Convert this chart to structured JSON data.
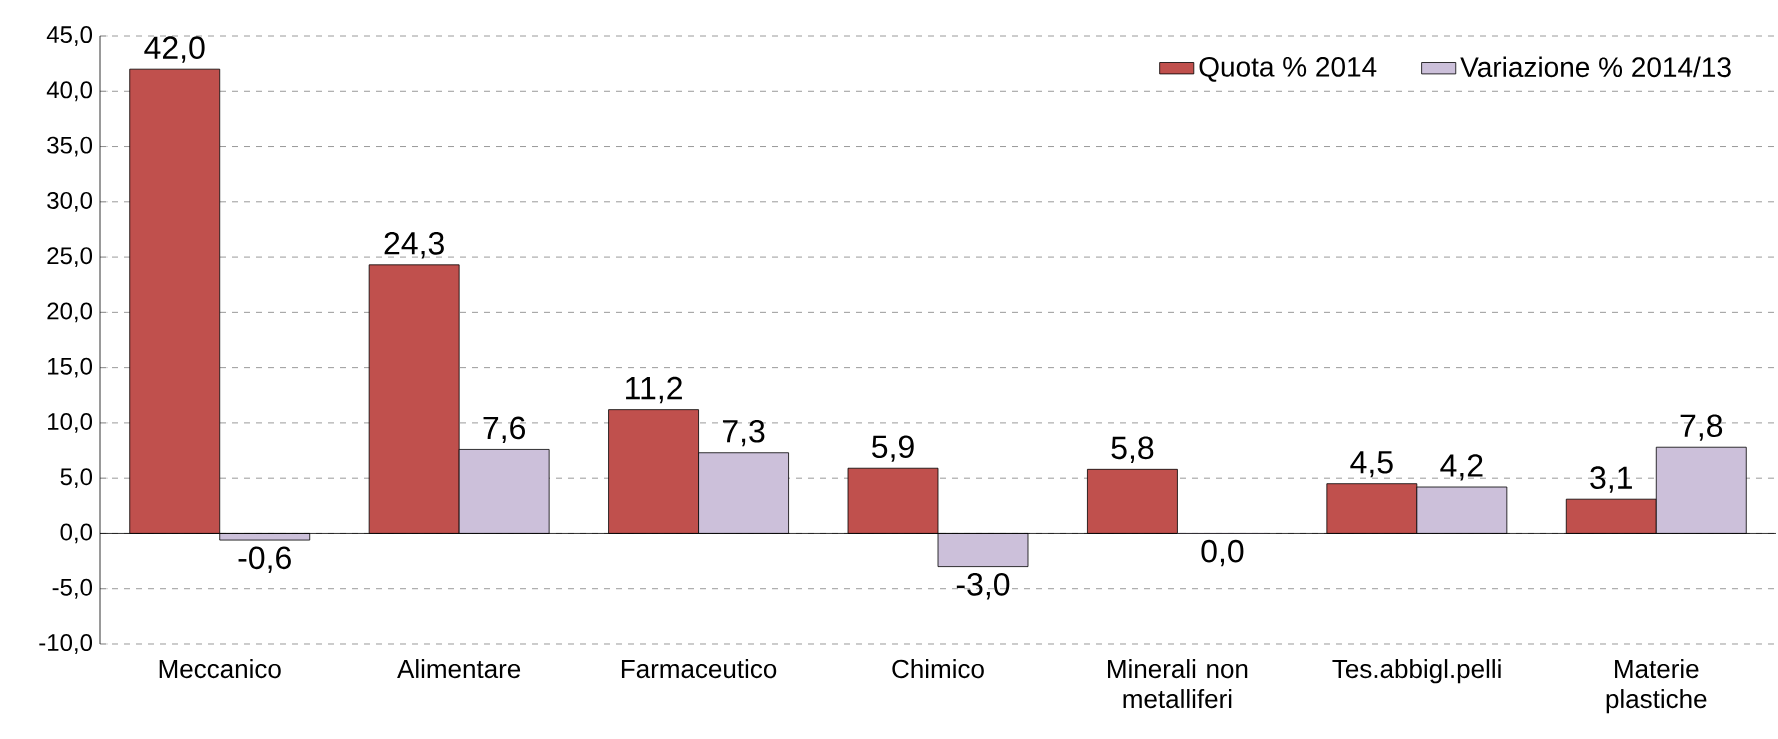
{
  "chart_data": {
    "type": "bar",
    "categories": [
      "Meccanico",
      "Alimentare",
      "Farmaceutico",
      "Chimico",
      "Minerali non metalliferi",
      "Tes.abbigl.pelli",
      "Materie plastiche"
    ],
    "series": [
      {
        "name": "Quota % 2014",
        "color": "#c0504d",
        "values": [
          42.0,
          24.3,
          11.2,
          5.9,
          5.8,
          4.5,
          3.1
        ],
        "value_labels": [
          "42,0",
          "24,3",
          "11,2",
          "5,9",
          "5,8",
          "4,5",
          "3,1"
        ]
      },
      {
        "name": "Variazione % 2014/13",
        "color": "#ccc0da",
        "values": [
          -0.6,
          7.6,
          7.3,
          -3.0,
          0.0,
          4.2,
          7.8
        ],
        "value_labels": [
          "-0,6",
          "7,6",
          "7,3",
          "-3,0",
          "0,0",
          "4,2",
          "7,8"
        ]
      }
    ],
    "ylim": [
      -10,
      45
    ],
    "yticks": [
      {
        "value": -10,
        "label": "-10,0"
      },
      {
        "value": -5,
        "label": "-5,0"
      },
      {
        "value": 0,
        "label": "0,0"
      },
      {
        "value": 5,
        "label": "5,0"
      },
      {
        "value": 10,
        "label": "10,0"
      },
      {
        "value": 15,
        "label": "15,0"
      },
      {
        "value": 20,
        "label": "20,0"
      },
      {
        "value": 25,
        "label": "25,0"
      },
      {
        "value": 30,
        "label": "30,0"
      },
      {
        "value": 35,
        "label": "35,0"
      },
      {
        "value": 40,
        "label": "40,0"
      },
      {
        "value": 45,
        "label": "45,0"
      }
    ],
    "grid": "y",
    "legend": "top right"
  }
}
